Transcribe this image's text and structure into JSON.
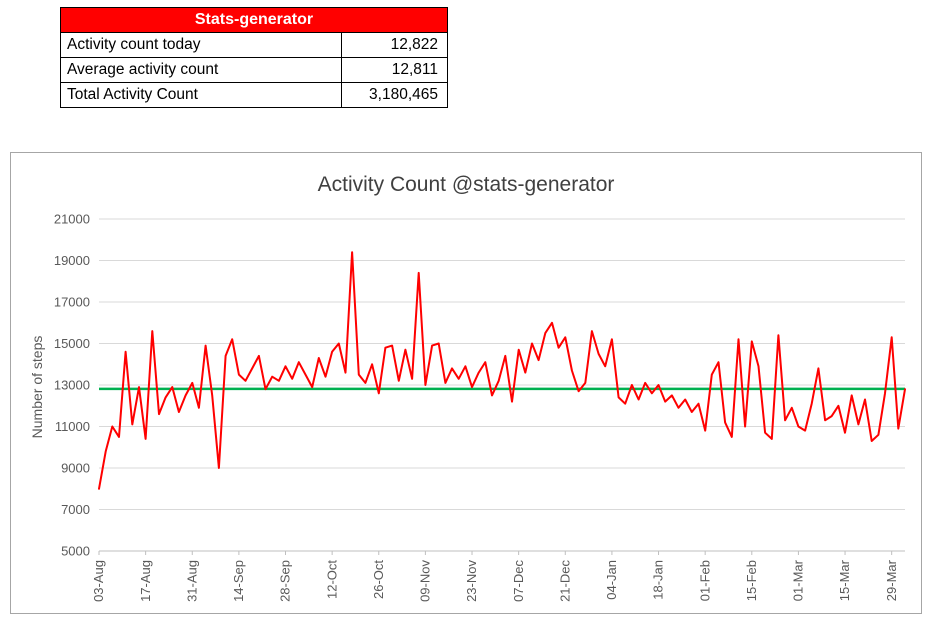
{
  "stats_table": {
    "header": "Stats-generator",
    "header_bg": "#FF0000",
    "header_text_color": "#FFFFFF",
    "rows": [
      {
        "label": "Activity count today",
        "value": "12,822"
      },
      {
        "label": "Average activity count",
        "value": "12,811"
      },
      {
        "label": "Total Activity Count",
        "value": "3,180,465"
      }
    ]
  },
  "chart_data": {
    "type": "line",
    "title": "Activity Count @stats-generator",
    "xlabel": "",
    "ylabel": "Number of steps",
    "ylim": [
      5000,
      21000
    ],
    "yticks": [
      5000,
      7000,
      9000,
      11000,
      13000,
      15000,
      17000,
      19000,
      21000
    ],
    "grid": true,
    "legend": "none",
    "x_interval_days": 2,
    "x_tick_every": 7,
    "x_tick_labels": [
      "03-Aug",
      "17-Aug",
      "31-Aug",
      "14-Sep",
      "28-Sep",
      "12-Oct",
      "26-Oct",
      "09-Nov",
      "23-Nov",
      "07-Dec",
      "21-Dec",
      "04-Jan",
      "18-Jan",
      "01-Feb",
      "15-Feb",
      "01-Mar",
      "15-Mar",
      "29-Mar"
    ],
    "series": [
      {
        "name": "Activity count",
        "color": "#FF0000",
        "values": [
          8000,
          9800,
          11000,
          10500,
          14600,
          11100,
          12900,
          10400,
          15600,
          11600,
          12400,
          12900,
          11700,
          12500,
          13100,
          11900,
          14900,
          12500,
          9000,
          14400,
          15200,
          13500,
          13200,
          13800,
          14400,
          12800,
          13400,
          13200,
          13900,
          13300,
          14100,
          13500,
          12900,
          14300,
          13400,
          14600,
          15000,
          13600,
          19400,
          13500,
          13100,
          14000,
          12600,
          14800,
          14900,
          13200,
          14700,
          13300,
          18400,
          13000,
          14900,
          15000,
          13100,
          13800,
          13300,
          13900,
          12900,
          13600,
          14100,
          12500,
          13200,
          14400,
          12200,
          14700,
          13600,
          15000,
          14200,
          15500,
          16000,
          14800,
          15300,
          13700,
          12700,
          13100,
          15600,
          14500,
          13900,
          15200,
          12400,
          12100,
          13000,
          12300,
          13100,
          12600,
          13000,
          12200,
          12500,
          11900,
          12300,
          11700,
          12100,
          10800,
          13500,
          14100,
          11200,
          10500,
          15200,
          11000,
          15100,
          13900,
          10700,
          10400,
          15400,
          11300,
          11900,
          11000,
          10800,
          12100,
          13800,
          11300,
          11500,
          12000,
          10700,
          12500,
          11100,
          12300,
          10300,
          10600,
          12600,
          15300,
          10900,
          12800
        ]
      },
      {
        "name": "Average",
        "color": "#00B050",
        "value": 12811
      }
    ]
  }
}
